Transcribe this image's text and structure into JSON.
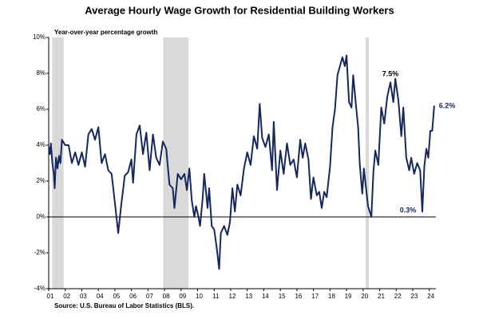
{
  "chart_data": {
    "type": "line",
    "title": "Average Hourly Wage Growth for Residential Building Workers",
    "subtitle": "Year-over-year percentage growth",
    "source": "Source: U.S. Bureau of Labor Statistics (BLS).",
    "color": "#15275f",
    "shade_color": "#d9d9d9",
    "shaded_regions": [
      [
        2001.2,
        2001.9
      ],
      [
        2007.92,
        2009.45
      ],
      [
        2020.15,
        2020.35
      ]
    ],
    "annotations": [
      "7.5%",
      "0.3%",
      "6.2%"
    ],
    "xlim": [
      2001,
      2024.4
    ],
    "ylim": [
      -4,
      10
    ],
    "xticks": [
      {
        "value": 2001,
        "label": "01"
      },
      {
        "value": 2002,
        "label": "02"
      },
      {
        "value": 2003,
        "label": "03"
      },
      {
        "value": 2004,
        "label": "04"
      },
      {
        "value": 2005,
        "label": "05"
      },
      {
        "value": 2006,
        "label": "06"
      },
      {
        "value": 2007,
        "label": "07"
      },
      {
        "value": 2008,
        "label": "08"
      },
      {
        "value": 2009,
        "label": "09"
      },
      {
        "value": 2010,
        "label": "10"
      },
      {
        "value": 2011,
        "label": "11"
      },
      {
        "value": 2012,
        "label": "12"
      },
      {
        "value": 2013,
        "label": "13"
      },
      {
        "value": 2014,
        "label": "14"
      },
      {
        "value": 2015,
        "label": "15"
      },
      {
        "value": 2016,
        "label": "16"
      },
      {
        "value": 2017,
        "label": "17"
      },
      {
        "value": 2018,
        "label": "18"
      },
      {
        "value": 2019,
        "label": "19"
      },
      {
        "value": 2020,
        "label": "20"
      },
      {
        "value": 2021,
        "label": "21"
      },
      {
        "value": 2022,
        "label": "22"
      },
      {
        "value": 2023,
        "label": "23"
      },
      {
        "value": 2024,
        "label": "24"
      }
    ],
    "yticks": [
      {
        "value": -4,
        "label": "-4%"
      },
      {
        "value": -2,
        "label": "-2%"
      },
      {
        "value": 0,
        "label": "0%"
      },
      {
        "value": 2,
        "label": "2%"
      },
      {
        "value": 4,
        "label": "4%"
      },
      {
        "value": 6,
        "label": "6%"
      },
      {
        "value": 8,
        "label": "8%"
      },
      {
        "value": 10,
        "label": "10%"
      }
    ],
    "x": [
      2001.0,
      2001.07,
      2001.13,
      2001.22,
      2001.31,
      2001.36,
      2001.44,
      2001.53,
      2001.62,
      2001.71,
      2001.8,
      2002.0,
      2002.2,
      2002.4,
      2002.6,
      2002.8,
      2003.0,
      2003.2,
      2003.4,
      2003.6,
      2003.8,
      2004.0,
      2004.2,
      2004.4,
      2004.6,
      2004.8,
      2005.0,
      2005.2,
      2005.4,
      2005.6,
      2005.8,
      2006.0,
      2006.1,
      2006.3,
      2006.5,
      2006.7,
      2006.9,
      2007.1,
      2007.3,
      2007.5,
      2007.7,
      2007.9,
      2008.1,
      2008.3,
      2008.5,
      2008.6,
      2008.8,
      2009.0,
      2009.2,
      2009.35,
      2009.5,
      2009.65,
      2009.8,
      2009.9,
      2010.05,
      2010.15,
      2010.3,
      2010.4,
      2010.6,
      2010.7,
      2010.85,
      2011.0,
      2011.15,
      2011.3,
      2011.4,
      2011.6,
      2011.8,
      2011.95,
      2012.1,
      2012.25,
      2012.4,
      2012.6,
      2012.8,
      2013.0,
      2013.2,
      2013.4,
      2013.6,
      2013.75,
      2013.9,
      2014.1,
      2014.3,
      2014.5,
      2014.6,
      2014.8,
      2015.0,
      2015.2,
      2015.4,
      2015.6,
      2015.8,
      2016.0,
      2016.2,
      2016.35,
      2016.5,
      2016.7,
      2016.85,
      2017.0,
      2017.2,
      2017.35,
      2017.5,
      2017.65,
      2017.8,
      2018.0,
      2018.15,
      2018.3,
      2018.45,
      2018.6,
      2018.75,
      2018.9,
      2019.0,
      2019.15,
      2019.3,
      2019.4,
      2019.55,
      2019.7,
      2019.8,
      2019.95,
      2020.05,
      2020.3,
      2020.5,
      2020.62,
      2020.74,
      2020.92,
      2021.1,
      2021.28,
      2021.46,
      2021.65,
      2021.83,
      2021.95,
      2022.13,
      2022.31,
      2022.43,
      2022.61,
      2022.79,
      2022.91,
      2023.09,
      2023.27,
      2023.45,
      2023.58,
      2023.7,
      2023.82,
      2023.94,
      2024.06,
      2024.18,
      2024.3
    ],
    "values": [
      3.9,
      3.5,
      4.1,
      3.0,
      2.4,
      1.6,
      3.3,
      2.7,
      3.4,
      3.0,
      4.3,
      4.0,
      4.0,
      3.0,
      3.6,
      2.9,
      3.6,
      2.8,
      4.6,
      4.9,
      4.3,
      5.0,
      3.0,
      3.5,
      2.6,
      2.4,
      0.8,
      -0.9,
      0.8,
      2.3,
      2.5,
      3.2,
      1.9,
      4.6,
      5.1,
      3.5,
      4.7,
      2.6,
      4.6,
      3.3,
      2.9,
      4.2,
      3.8,
      1.8,
      1.6,
      0.5,
      2.4,
      2.1,
      2.4,
      1.5,
      2.7,
      0.9,
      0.0,
      0.6,
      0.0,
      -0.5,
      1.0,
      2.4,
      0.5,
      1.6,
      -0.5,
      -0.7,
      -1.7,
      -2.9,
      -0.9,
      -0.5,
      -1.0,
      -0.3,
      1.6,
      0.3,
      1.8,
      1.2,
      2.7,
      3.6,
      2.9,
      4.5,
      3.8,
      6.3,
      4.4,
      3.9,
      4.6,
      2.6,
      5.3,
      1.5,
      3.7,
      2.4,
      4.1,
      2.9,
      3.2,
      2.2,
      4.3,
      3.3,
      4.1,
      3.2,
      1.0,
      2.2,
      1.2,
      1.4,
      0.5,
      1.4,
      1.1,
      2.8,
      5.0,
      6.0,
      7.9,
      8.4,
      8.9,
      8.4,
      9.0,
      6.4,
      6.1,
      7.9,
      6.4,
      5.0,
      2.9,
      1.3,
      2.7,
      0.6,
      0.0,
      2.5,
      3.7,
      2.9,
      6.1,
      5.2,
      6.7,
      7.5,
      6.4,
      7.7,
      6.5,
      4.5,
      6.1,
      3.3,
      2.6,
      3.3,
      2.4,
      3.0,
      2.6,
      0.3,
      2.8,
      3.8,
      3.3,
      4.8,
      4.8,
      6.2
    ]
  }
}
